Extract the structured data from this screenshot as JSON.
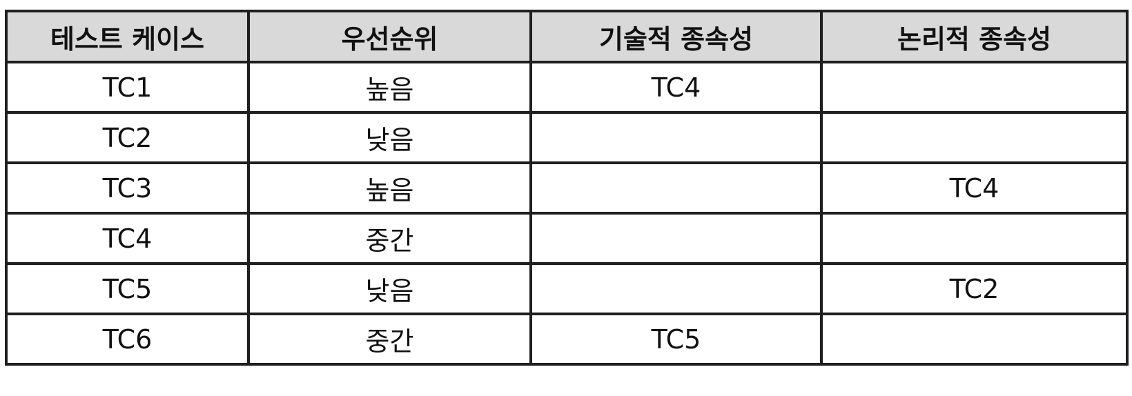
{
  "table": {
    "headers": [
      "테스트 케이스",
      "우선순위",
      "기술적 종속성",
      "논리적 종속성"
    ],
    "rows": [
      [
        "TC1",
        "높음",
        "TC4",
        ""
      ],
      [
        "TC2",
        "낮음",
        "",
        ""
      ],
      [
        "TC3",
        "높음",
        "",
        "TC4"
      ],
      [
        "TC4",
        "중간",
        "",
        ""
      ],
      [
        "TC5",
        "낮음",
        "",
        "TC2"
      ],
      [
        "TC6",
        "중간",
        "TC5",
        ""
      ]
    ]
  }
}
